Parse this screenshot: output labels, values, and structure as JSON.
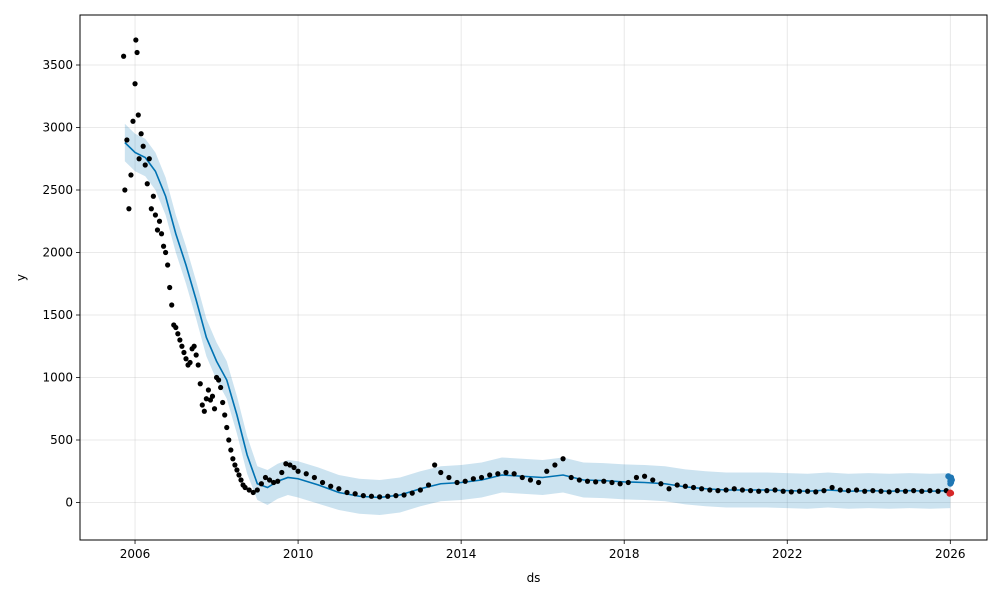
{
  "chart_data": {
    "type": "scatter",
    "xlabel": "ds",
    "ylabel": "y",
    "x_ticks": [
      "2006",
      "2010",
      "2014",
      "2018",
      "2022",
      "2026"
    ],
    "y_ticks": [
      "0",
      "500",
      "1000",
      "1500",
      "2000",
      "2500",
      "3000",
      "3500"
    ],
    "xlim": [
      2004.65,
      2026.9
    ],
    "ylim": [
      -300,
      3900
    ],
    "grid": true,
    "colors": {
      "observed": "#000000",
      "forecast_line": "#0072B2",
      "uncertainty_band": "#0072B2",
      "forecast_points": "#1f77b4",
      "highlight_point": "#d62728"
    },
    "series": [
      {
        "role": "trend",
        "x": [
          2005.75,
          2006.0,
          2006.25,
          2006.5,
          2006.75,
          2007.0,
          2007.25,
          2007.5,
          2007.75,
          2008.0,
          2008.25,
          2008.5,
          2008.75,
          2009.0,
          2009.25,
          2009.5,
          2009.75,
          2010.0,
          2010.5,
          2011.0,
          2011.5,
          2012.0,
          2012.5,
          2013.0,
          2013.5,
          2014.0,
          2014.5,
          2015.0,
          2015.5,
          2016.0,
          2016.5,
          2017.0,
          2017.5,
          2018.0,
          2018.5,
          2019.0,
          2019.5,
          2020.0,
          2020.5,
          2021.0,
          2021.5,
          2022.0,
          2022.5,
          2023.0,
          2023.5,
          2024.0,
          2024.5,
          2025.0,
          2025.5,
          2026.0
        ],
        "y": [
          2880,
          2800,
          2760,
          2650,
          2450,
          2150,
          1900,
          1620,
          1320,
          1130,
          980,
          700,
          380,
          150,
          120,
          170,
          200,
          190,
          140,
          80,
          50,
          40,
          60,
          110,
          150,
          160,
          180,
          220,
          210,
          200,
          220,
          180,
          175,
          165,
          160,
          150,
          125,
          110,
          100,
          100,
          100,
          95,
          90,
          100,
          90,
          95,
          90,
          95,
          90,
          95
        ],
        "band_lower": [
          2730,
          2650,
          2610,
          2500,
          2300,
          2000,
          1750,
          1470,
          1170,
          980,
          830,
          550,
          230,
          20,
          -20,
          30,
          60,
          40,
          -10,
          -60,
          -90,
          -100,
          -80,
          -30,
          10,
          20,
          40,
          80,
          70,
          60,
          80,
          40,
          35,
          25,
          20,
          10,
          -15,
          -30,
          -40,
          -40,
          -40,
          -45,
          -50,
          -40,
          -50,
          -45,
          -50,
          -45,
          -50,
          -45
        ],
        "band_upper": [
          3030,
          2950,
          2910,
          2800,
          2600,
          2300,
          2050,
          1770,
          1470,
          1280,
          1130,
          850,
          530,
          290,
          260,
          310,
          340,
          330,
          280,
          220,
          190,
          180,
          200,
          250,
          290,
          300,
          320,
          360,
          350,
          340,
          360,
          320,
          315,
          305,
          300,
          290,
          265,
          250,
          240,
          240,
          240,
          235,
          230,
          240,
          230,
          235,
          230,
          235,
          230,
          235
        ]
      },
      {
        "role": "observed",
        "x": [
          2005.72,
          2005.75,
          2005.8,
          2005.85,
          2005.9,
          2005.95,
          2006.0,
          2006.02,
          2006.05,
          2006.08,
          2006.1,
          2006.15,
          2006.2,
          2006.25,
          2006.3,
          2006.35,
          2006.4,
          2006.45,
          2006.5,
          2006.55,
          2006.6,
          2006.65,
          2006.7,
          2006.75,
          2006.8,
          2006.85,
          2006.9,
          2006.95,
          2007.0,
          2007.05,
          2007.1,
          2007.15,
          2007.2,
          2007.25,
          2007.3,
          2007.35,
          2007.4,
          2007.45,
          2007.5,
          2007.55,
          2007.6,
          2007.65,
          2007.7,
          2007.75,
          2007.8,
          2007.85,
          2007.9,
          2007.95,
          2008.0,
          2008.05,
          2008.1,
          2008.15,
          2008.2,
          2008.25,
          2008.3,
          2008.35,
          2008.4,
          2008.45,
          2008.5,
          2008.55,
          2008.6,
          2008.65,
          2008.7,
          2008.8,
          2008.9,
          2009.0,
          2009.1,
          2009.2,
          2009.3,
          2009.4,
          2009.5,
          2009.6,
          2009.7,
          2009.8,
          2009.9,
          2010.0,
          2010.2,
          2010.4,
          2010.6,
          2010.8,
          2011.0,
          2011.2,
          2011.4,
          2011.6,
          2011.8,
          2012.0,
          2012.2,
          2012.4,
          2012.6,
          2012.8,
          2013.0,
          2013.2,
          2013.35,
          2013.5,
          2013.7,
          2013.9,
          2014.1,
          2014.3,
          2014.5,
          2014.7,
          2014.9,
          2015.1,
          2015.3,
          2015.5,
          2015.7,
          2015.9,
          2016.1,
          2016.3,
          2016.5,
          2016.7,
          2016.9,
          2017.1,
          2017.3,
          2017.5,
          2017.7,
          2017.9,
          2018.1,
          2018.3,
          2018.5,
          2018.7,
          2018.9,
          2019.1,
          2019.3,
          2019.5,
          2019.7,
          2019.9,
          2020.1,
          2020.3,
          2020.5,
          2020.7,
          2020.9,
          2021.1,
          2021.3,
          2021.5,
          2021.7,
          2021.9,
          2022.1,
          2022.3,
          2022.5,
          2022.7,
          2022.9,
          2023.1,
          2023.3,
          2023.5,
          2023.7,
          2023.9,
          2024.1,
          2024.3,
          2024.5,
          2024.7,
          2024.9,
          2025.1,
          2025.3,
          2025.5,
          2025.7,
          2025.9
        ],
        "y": [
          3570,
          2500,
          2900,
          2350,
          2620,
          3050,
          3350,
          3700,
          3600,
          3100,
          2750,
          2950,
          2850,
          2700,
          2550,
          2750,
          2350,
          2450,
          2300,
          2180,
          2250,
          2150,
          2050,
          2000,
          1900,
          1720,
          1580,
          1420,
          1400,
          1350,
          1300,
          1250,
          1200,
          1150,
          1100,
          1120,
          1230,
          1250,
          1180,
          1100,
          950,
          780,
          730,
          830,
          900,
          820,
          850,
          750,
          1000,
          980,
          920,
          800,
          700,
          600,
          500,
          420,
          350,
          300,
          260,
          220,
          180,
          140,
          120,
          100,
          80,
          100,
          150,
          200,
          180,
          160,
          170,
          240,
          310,
          300,
          280,
          250,
          230,
          200,
          160,
          130,
          110,
          80,
          70,
          55,
          50,
          45,
          50,
          55,
          60,
          75,
          100,
          140,
          300,
          240,
          200,
          160,
          170,
          190,
          200,
          220,
          230,
          240,
          230,
          200,
          180,
          160,
          250,
          300,
          350,
          200,
          180,
          170,
          165,
          170,
          160,
          150,
          160,
          200,
          210,
          180,
          150,
          110,
          140,
          130,
          120,
          110,
          100,
          95,
          100,
          110,
          100,
          95,
          90,
          95,
          100,
          90,
          85,
          90,
          90,
          85,
          95,
          120,
          100,
          95,
          100,
          90,
          95,
          90,
          85,
          95,
          90,
          95,
          90,
          95,
          90,
          95
        ]
      },
      {
        "role": "forecast",
        "x": [
          2025.95,
          2026.0,
          2026.0,
          2026.0,
          2026.02,
          2026.02,
          2026.04
        ],
        "y": [
          210,
          190,
          170,
          150,
          200,
          160,
          180
        ]
      },
      {
        "role": "last-observation",
        "x": [
          2025.98,
          2026.0,
          2026.02
        ],
        "y": [
          70,
          80,
          75
        ]
      }
    ]
  }
}
